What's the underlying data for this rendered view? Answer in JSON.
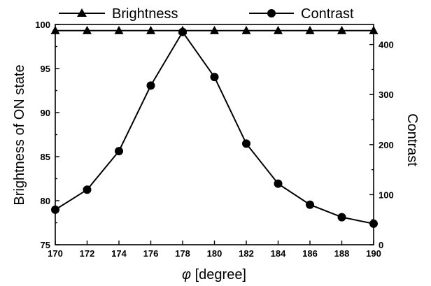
{
  "chart_data": {
    "type": "line",
    "x": [
      170,
      172,
      174,
      176,
      178,
      180,
      182,
      184,
      186,
      188,
      190
    ],
    "x_ticks": [
      "170",
      "172",
      "174",
      "176",
      "178",
      "180",
      "182",
      "184",
      "186",
      "188",
      "190"
    ],
    "xlim": [
      170,
      190
    ],
    "xlabel_symbol": "φ",
    "xlabel_rest": " [degree]",
    "ylabel_left": "Brightness of ON state",
    "ylim_left": [
      75,
      100
    ],
    "y_ticks_left": [
      "75",
      "80",
      "85",
      "90",
      "95",
      "100"
    ],
    "ylabel_right": "Contrast",
    "ylim_right": [
      0,
      440
    ],
    "y_ticks_right": [
      "0",
      "100",
      "200",
      "300",
      "400"
    ],
    "series": [
      {
        "name": "Brightness",
        "axis": "left",
        "marker": "triangle",
        "values": [
          99.3,
          99.3,
          99.3,
          99.3,
          99.3,
          99.3,
          99.3,
          99.3,
          99.3,
          99.3,
          99.3
        ]
      },
      {
        "name": "Contrast",
        "axis": "right",
        "marker": "circle",
        "values": [
          70,
          110,
          187,
          318,
          425,
          335,
          202,
          122,
          80,
          55,
          42
        ]
      }
    ],
    "legend_position": "top",
    "grid": false
  }
}
